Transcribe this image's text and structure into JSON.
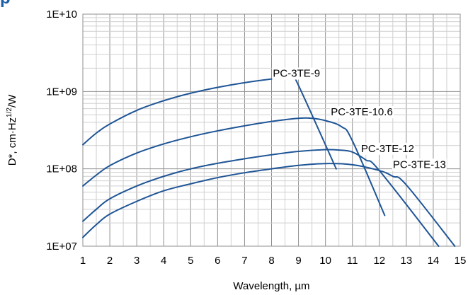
{
  "page": {
    "title": "p"
  },
  "colors": {
    "series": "#1f5596",
    "title": "#1f5fa8",
    "grid_major": "#8f8f8f",
    "grid_minor": "#cfcfcf"
  },
  "chart_data": {
    "type": "line",
    "title": "",
    "xlabel": "Wavelength, µm",
    "ylabel_main": "D*, cm·Hz",
    "ylabel_sup": "1/2",
    "ylabel_tail": "/W",
    "xlim": [
      1,
      15
    ],
    "ylim": [
      10000000,
      10000000000
    ],
    "y_scale": "log",
    "grid": true,
    "x_ticks": [
      1,
      2,
      3,
      4,
      5,
      6,
      7,
      8,
      9,
      10,
      11,
      12,
      13,
      14,
      15
    ],
    "y_ticks": [
      {
        "value": 10000000,
        "label": "1E+07"
      },
      {
        "value": 100000000,
        "label": "1E+08"
      },
      {
        "value": 1000000000,
        "label": "1E+09"
      },
      {
        "value": 10000000000,
        "label": "1E+10"
      }
    ],
    "series": [
      {
        "name": "PC-3TE-9",
        "points": [
          [
            1.0,
            205000000
          ],
          [
            1.5,
            290000000
          ],
          [
            2.0,
            380000000
          ],
          [
            3.0,
            570000000
          ],
          [
            4.0,
            760000000
          ],
          [
            5.0,
            950000000
          ],
          [
            6.0,
            1130000000
          ],
          [
            7.0,
            1300000000
          ],
          [
            8.0,
            1450000000
          ],
          [
            8.5,
            1500000000
          ],
          [
            8.8,
            1470000000
          ],
          [
            9.0,
            1200000000
          ],
          [
            10.4,
            100000000
          ]
        ],
        "label_at": [
          8.05,
          1550000000
        ]
      },
      {
        "name": "PC-3TE-10.6",
        "points": [
          [
            1.0,
            60000000
          ],
          [
            1.5,
            83000000
          ],
          [
            2.0,
            110000000
          ],
          [
            3.0,
            160000000
          ],
          [
            4.0,
            210000000
          ],
          [
            5.0,
            260000000
          ],
          [
            6.0,
            310000000
          ],
          [
            7.0,
            360000000
          ],
          [
            8.0,
            410000000
          ],
          [
            9.0,
            450000000
          ],
          [
            9.5,
            450000000
          ],
          [
            10.0,
            420000000
          ],
          [
            10.6,
            350000000
          ],
          [
            11.0,
            230000000
          ],
          [
            12.2,
            25000000
          ]
        ],
        "label_at": [
          10.2,
          490000000
        ]
      },
      {
        "name": "PC-3TE-12",
        "points": [
          [
            1.0,
            21000000
          ],
          [
            1.5,
            30000000
          ],
          [
            2.0,
            41000000
          ],
          [
            3.0,
            60000000
          ],
          [
            4.0,
            80000000
          ],
          [
            5.0,
            100000000
          ],
          [
            6.0,
            118000000
          ],
          [
            7.0,
            135000000
          ],
          [
            8.0,
            152000000
          ],
          [
            9.0,
            168000000
          ],
          [
            10.0,
            177000000
          ],
          [
            10.5,
            175000000
          ],
          [
            11.0,
            165000000
          ],
          [
            11.5,
            130000000
          ],
          [
            12.0,
            95000000
          ],
          [
            14.2,
            10000000
          ]
        ],
        "label_at": [
          11.32,
          165000000
        ]
      },
      {
        "name": "PC-3TE-13",
        "points": [
          [
            1.0,
            13000000
          ],
          [
            1.5,
            19000000
          ],
          [
            2.0,
            26000000
          ],
          [
            3.0,
            38000000
          ],
          [
            4.0,
            52000000
          ],
          [
            5.0,
            64000000
          ],
          [
            6.0,
            77000000
          ],
          [
            7.0,
            89000000
          ],
          [
            8.0,
            100000000
          ],
          [
            9.0,
            111000000
          ],
          [
            10.0,
            117000000
          ],
          [
            11.0,
            113000000
          ],
          [
            12.0,
            95000000
          ],
          [
            12.5,
            80000000
          ],
          [
            13.0,
            62000000
          ],
          [
            14.8,
            10000000
          ]
        ],
        "label_at": [
          12.5,
          103000000
        ]
      }
    ]
  }
}
